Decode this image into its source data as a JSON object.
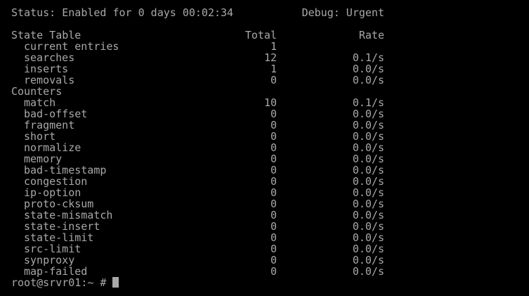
{
  "status": {
    "text": "Status: Enabled for 0 days 00:02:34",
    "debug": "Debug: Urgent"
  },
  "state_table": {
    "title": "State Table",
    "total_header": "Total",
    "rate_header": "Rate",
    "rows": [
      {
        "name": "current entries",
        "total": "1",
        "rate": ""
      },
      {
        "name": "searches",
        "total": "12",
        "rate": "0.1/s"
      },
      {
        "name": "inserts",
        "total": "1",
        "rate": "0.0/s"
      },
      {
        "name": "removals",
        "total": "0",
        "rate": "0.0/s"
      }
    ]
  },
  "counters": {
    "title": "Counters",
    "rows": [
      {
        "name": "match",
        "total": "10",
        "rate": "0.1/s"
      },
      {
        "name": "bad-offset",
        "total": "0",
        "rate": "0.0/s"
      },
      {
        "name": "fragment",
        "total": "0",
        "rate": "0.0/s"
      },
      {
        "name": "short",
        "total": "0",
        "rate": "0.0/s"
      },
      {
        "name": "normalize",
        "total": "0",
        "rate": "0.0/s"
      },
      {
        "name": "memory",
        "total": "0",
        "rate": "0.0/s"
      },
      {
        "name": "bad-timestamp",
        "total": "0",
        "rate": "0.0/s"
      },
      {
        "name": "congestion",
        "total": "0",
        "rate": "0.0/s"
      },
      {
        "name": "ip-option",
        "total": "0",
        "rate": "0.0/s"
      },
      {
        "name": "proto-cksum",
        "total": "0",
        "rate": "0.0/s"
      },
      {
        "name": "state-mismatch",
        "total": "0",
        "rate": "0.0/s"
      },
      {
        "name": "state-insert",
        "total": "0",
        "rate": "0.0/s"
      },
      {
        "name": "state-limit",
        "total": "0",
        "rate": "0.0/s"
      },
      {
        "name": "src-limit",
        "total": "0",
        "rate": "0.0/s"
      },
      {
        "name": "synproxy",
        "total": "0",
        "rate": "0.0/s"
      },
      {
        "name": "map-failed",
        "total": "0",
        "rate": "0.0/s"
      }
    ]
  },
  "prompt": {
    "text": "root@srvr01:~ #",
    "colors": {
      "fg": "#a8a8a8",
      "bg": "#000000"
    }
  }
}
